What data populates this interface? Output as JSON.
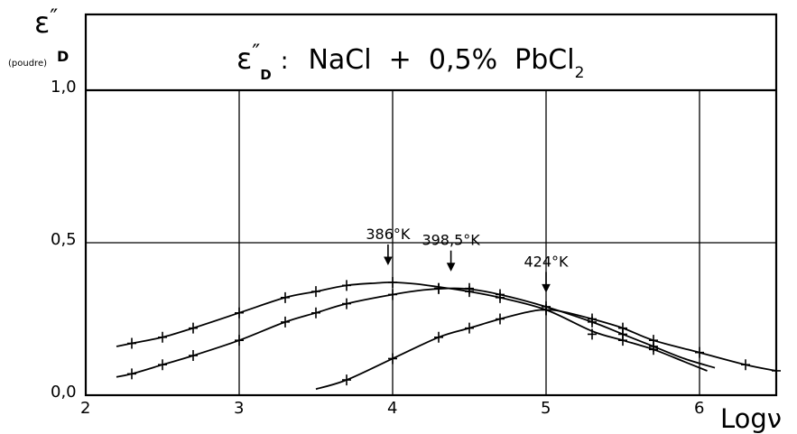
{
  "chart_data": {
    "type": "line",
    "title": {
      "symbol": "ε",
      "symbol_prime": "″",
      "symbol_sub": "D",
      "separator": ":",
      "text": "NaCl  +  0,5%  PbCl",
      "text_sub": "2"
    },
    "ylabel": {
      "symbol": "ε",
      "prime": "″",
      "sub_note": "(poudre)",
      "sub": "D"
    },
    "xlabel": "Logν",
    "xlim": [
      2,
      6.5
    ],
    "ylim": [
      0,
      1.0
    ],
    "xticks": [
      {
        "value": 2,
        "label": "2"
      },
      {
        "value": 3,
        "label": "3"
      },
      {
        "value": 4,
        "label": "4"
      },
      {
        "value": 5,
        "label": "5"
      },
      {
        "value": 6,
        "label": "6"
      }
    ],
    "yticks": [
      {
        "value": 0.0,
        "label": "0,0"
      },
      {
        "value": 0.5,
        "label": "0,5"
      },
      {
        "value": 1.0,
        "label": "1,0"
      }
    ],
    "grid": true,
    "series": [
      {
        "name": "386°K",
        "marker_x": [
          2.3,
          2.5,
          2.7,
          3.0,
          3.3,
          3.5,
          3.7,
          4.0,
          4.3,
          4.5,
          4.7,
          5.0,
          5.3,
          5.5,
          5.7
        ],
        "marker_y": [
          0.17,
          0.19,
          0.22,
          0.27,
          0.32,
          0.34,
          0.36,
          0.37,
          0.35,
          0.34,
          0.32,
          0.28,
          0.2,
          0.18,
          0.15
        ],
        "curve_x": [
          2.2,
          2.3,
          2.5,
          2.7,
          3.0,
          3.3,
          3.5,
          3.7,
          3.9,
          4.0,
          4.15,
          4.3,
          4.5,
          4.7,
          5.0,
          5.3,
          5.5,
          5.7,
          5.9,
          6.05
        ],
        "curve_y": [
          0.16,
          0.17,
          0.19,
          0.22,
          0.27,
          0.32,
          0.34,
          0.36,
          0.368,
          0.37,
          0.365,
          0.355,
          0.34,
          0.32,
          0.28,
          0.21,
          0.18,
          0.15,
          0.11,
          0.08
        ]
      },
      {
        "name": "398,5°K",
        "marker_x": [
          2.3,
          2.5,
          2.7,
          3.0,
          3.3,
          3.5,
          3.7,
          4.0,
          4.3,
          4.5,
          4.7,
          5.0,
          5.3,
          5.5,
          5.7
        ],
        "marker_y": [
          0.07,
          0.1,
          0.13,
          0.18,
          0.24,
          0.27,
          0.3,
          0.33,
          0.35,
          0.35,
          0.33,
          0.29,
          0.24,
          0.2,
          0.16
        ],
        "curve_x": [
          2.2,
          2.3,
          2.5,
          2.7,
          3.0,
          3.3,
          3.5,
          3.7,
          4.0,
          4.2,
          4.35,
          4.5,
          4.7,
          5.0,
          5.3,
          5.5,
          5.7,
          5.9,
          6.1
        ],
        "curve_y": [
          0.06,
          0.07,
          0.1,
          0.13,
          0.18,
          0.24,
          0.27,
          0.3,
          0.33,
          0.345,
          0.35,
          0.348,
          0.33,
          0.29,
          0.24,
          0.2,
          0.16,
          0.12,
          0.09
        ]
      },
      {
        "name": "424°K",
        "marker_x": [
          3.7,
          4.0,
          4.3,
          4.5,
          4.7,
          5.0,
          5.3,
          5.5,
          5.7,
          6.0,
          6.3,
          6.5
        ],
        "marker_y": [
          0.05,
          0.12,
          0.19,
          0.22,
          0.25,
          0.28,
          0.25,
          0.22,
          0.18,
          0.14,
          0.1,
          0.08
        ],
        "curve_x": [
          3.5,
          3.7,
          4.0,
          4.3,
          4.5,
          4.7,
          4.9,
          5.0,
          5.1,
          5.3,
          5.5,
          5.7,
          6.0,
          6.3,
          6.5
        ],
        "curve_y": [
          0.02,
          0.05,
          0.12,
          0.19,
          0.22,
          0.25,
          0.275,
          0.28,
          0.275,
          0.25,
          0.22,
          0.18,
          0.14,
          0.1,
          0.08
        ]
      }
    ],
    "annotations": [
      {
        "text": "386°K",
        "series": "386°K",
        "points_at": {
          "x": 3.97,
          "y": 0.37
        }
      },
      {
        "text": "398,5°K",
        "series": "398,5°K",
        "points_at": {
          "x": 4.38,
          "y": 0.35
        }
      },
      {
        "text": "424°K",
        "series": "424°K",
        "points_at": {
          "x": 5.0,
          "y": 0.28
        }
      }
    ]
  }
}
